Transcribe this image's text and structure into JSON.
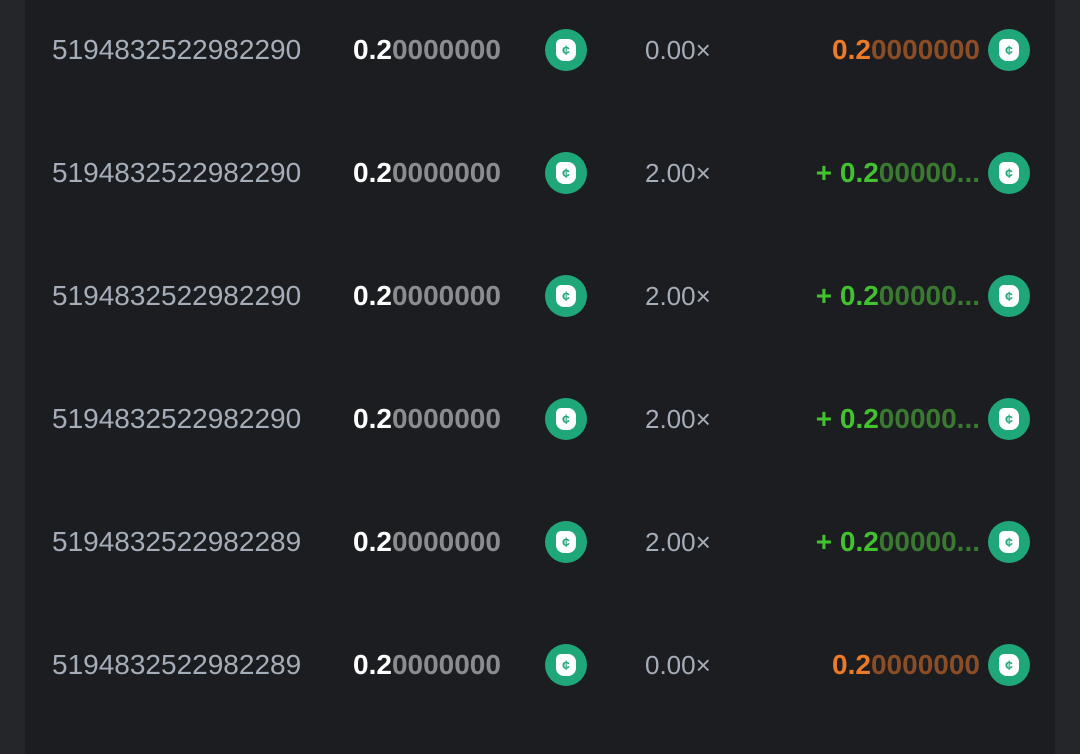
{
  "colors": {
    "coin": "#1fa77a",
    "win": "#43c230",
    "loss": "#ec7a26",
    "background": "#1c1d21"
  },
  "coin_icon": "bc-coin-icon",
  "rows": [
    {
      "id": "5194832522982290",
      "amount_hi": "0.2",
      "amount_lo": "0000000",
      "multiplier": "0.00×",
      "payout_hi": "0.2",
      "payout_lo": "0000000",
      "result": "loss"
    },
    {
      "id": "5194832522982290",
      "amount_hi": "0.2",
      "amount_lo": "0000000",
      "multiplier": "2.00×",
      "payout_hi": "+ 0.2",
      "payout_lo": "00000...",
      "result": "win"
    },
    {
      "id": "5194832522982290",
      "amount_hi": "0.2",
      "amount_lo": "0000000",
      "multiplier": "2.00×",
      "payout_hi": "+ 0.2",
      "payout_lo": "00000...",
      "result": "win"
    },
    {
      "id": "5194832522982290",
      "amount_hi": "0.2",
      "amount_lo": "0000000",
      "multiplier": "2.00×",
      "payout_hi": "+ 0.2",
      "payout_lo": "00000...",
      "result": "win"
    },
    {
      "id": "5194832522982289",
      "amount_hi": "0.2",
      "amount_lo": "0000000",
      "multiplier": "2.00×",
      "payout_hi": "+ 0.2",
      "payout_lo": "00000...",
      "result": "win"
    },
    {
      "id": "5194832522982289",
      "amount_hi": "0.2",
      "amount_lo": "0000000",
      "multiplier": "0.00×",
      "payout_hi": "0.2",
      "payout_lo": "0000000",
      "result": "loss"
    }
  ]
}
